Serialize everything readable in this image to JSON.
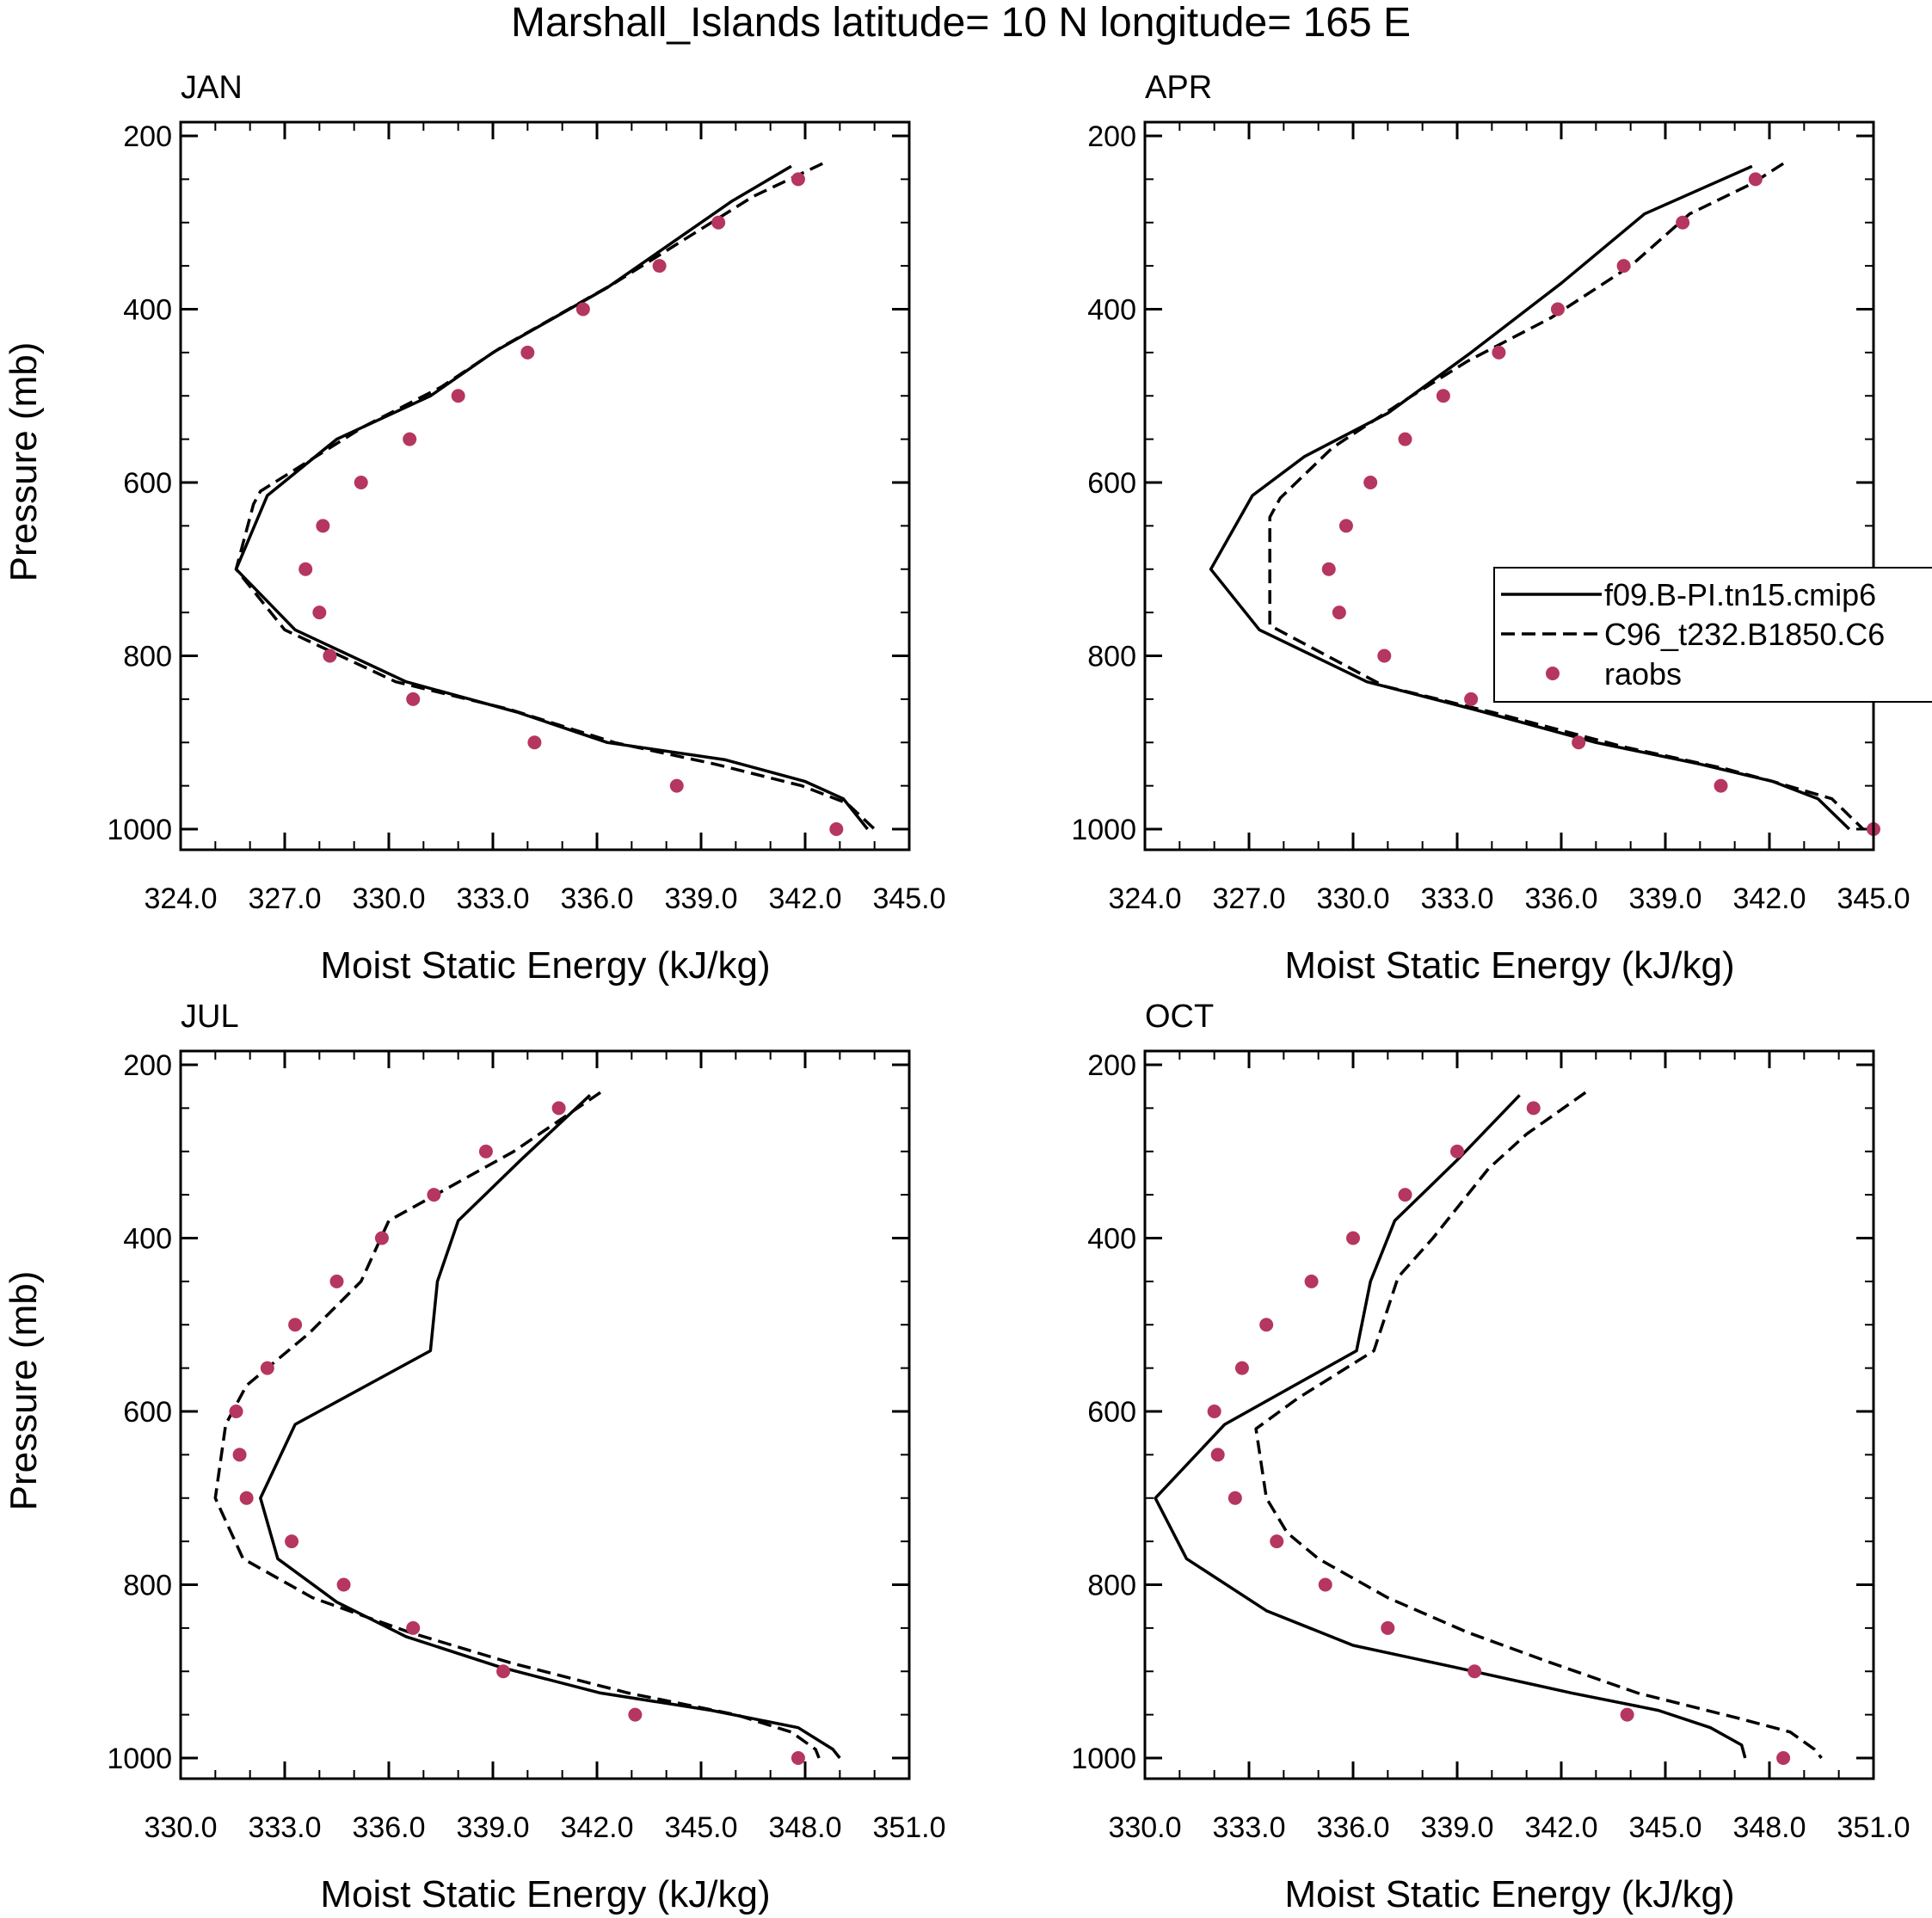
{
  "figure_title": "Marshall_Islands  latitude= 10 N longitude= 165 E",
  "colors": {
    "raobs": "#b5365f",
    "model": "#000000",
    "background": "#ffffff"
  },
  "legend": {
    "entries": [
      {
        "label": "f09.B-PI.tn15.cmip6",
        "style": "solid"
      },
      {
        "label": "C96_t232.B1850.C6",
        "style": "dashed"
      },
      {
        "label": "raobs",
        "style": "marker"
      }
    ]
  },
  "chart_data": [
    {
      "type": "line",
      "title": "JAN",
      "xlabel": "Moist Static Energy (kJ/kg)",
      "ylabel": "Pressure (mb)",
      "xlim": [
        324,
        345
      ],
      "ylim": [
        1000,
        200
      ],
      "xticks": [
        "324.0",
        "327.0",
        "330.0",
        "333.0",
        "336.0",
        "339.0",
        "342.0",
        "345.0"
      ],
      "yticks": [
        "200",
        "400",
        "600",
        "800",
        "1000"
      ],
      "series": [
        {
          "name": "f09.B-PI.tn15.cmip6",
          "style": "solid",
          "points": [
            [
              341.6,
              235
            ],
            [
              339.9,
              275
            ],
            [
              336.3,
              375
            ],
            [
              333.0,
              450
            ],
            [
              331.2,
              500
            ],
            [
              328.5,
              550
            ],
            [
              326.5,
              615
            ],
            [
              325.6,
              700
            ],
            [
              327.3,
              770
            ],
            [
              330.5,
              830
            ],
            [
              333.7,
              865
            ],
            [
              336.3,
              900
            ],
            [
              339.7,
              920
            ],
            [
              342.0,
              945
            ],
            [
              343.1,
              965
            ],
            [
              343.8,
              1000
            ]
          ]
        },
        {
          "name": "C96_t232.B1850.C6",
          "style": "dashed",
          "points": [
            [
              342.5,
              232
            ],
            [
              340.5,
              270
            ],
            [
              336.5,
              370
            ],
            [
              333.2,
              445
            ],
            [
              331.5,
              490
            ],
            [
              329.3,
              535
            ],
            [
              326.3,
              610
            ],
            [
              326.1,
              625
            ],
            [
              325.6,
              700
            ],
            [
              327.0,
              770
            ],
            [
              330.2,
              830
            ],
            [
              333.5,
              862
            ],
            [
              336.5,
              900
            ],
            [
              339.4,
              925
            ],
            [
              341.9,
              950
            ],
            [
              343.2,
              970
            ],
            [
              344.0,
              1000
            ]
          ]
        },
        {
          "name": "raobs",
          "style": "marker",
          "points": [
            [
              341.8,
              250
            ],
            [
              339.5,
              300
            ],
            [
              337.8,
              350
            ],
            [
              335.6,
              400
            ],
            [
              334.0,
              450
            ],
            [
              332.0,
              500
            ],
            [
              330.6,
              550
            ],
            [
              329.2,
              600
            ],
            [
              328.1,
              650
            ],
            [
              327.6,
              700
            ],
            [
              328.0,
              750
            ],
            [
              328.3,
              800
            ],
            [
              330.7,
              850
            ],
            [
              334.2,
              900
            ],
            [
              338.3,
              950
            ],
            [
              342.9,
              1000
            ]
          ]
        }
      ]
    },
    {
      "type": "line",
      "title": "APR",
      "xlabel": "Moist Static Energy (kJ/kg)",
      "ylabel": "",
      "xlim": [
        324,
        345
      ],
      "ylim": [
        1000,
        200
      ],
      "xticks": [
        "324.0",
        "327.0",
        "330.0",
        "333.0",
        "336.0",
        "339.0",
        "342.0",
        "345.0"
      ],
      "yticks": [
        "200",
        "400",
        "600",
        "800",
        "1000"
      ],
      "series": [
        {
          "name": "f09.B-PI.tn15.cmip6",
          "style": "solid",
          "points": [
            [
              341.5,
              235
            ],
            [
              338.4,
              290
            ],
            [
              336.0,
              370
            ],
            [
              333.4,
              450
            ],
            [
              331.0,
              520
            ],
            [
              328.6,
              570
            ],
            [
              327.1,
              615
            ],
            [
              325.9,
              700
            ],
            [
              327.3,
              770
            ],
            [
              330.4,
              830
            ],
            [
              333.5,
              862
            ],
            [
              337.0,
              900
            ],
            [
              340.0,
              925
            ],
            [
              342.1,
              945
            ],
            [
              343.4,
              965
            ],
            [
              344.3,
              1000
            ]
          ]
        },
        {
          "name": "C96_t232.B1850.C6",
          "style": "dashed",
          "points": [
            [
              342.4,
              232
            ],
            [
              341.5,
              255
            ],
            [
              339.7,
              290
            ],
            [
              338.0,
              350
            ],
            [
              335.7,
              410
            ],
            [
              333.3,
              460
            ],
            [
              331.3,
              510
            ],
            [
              329.4,
              560
            ],
            [
              327.9,
              618
            ],
            [
              327.6,
              640
            ],
            [
              327.6,
              700
            ],
            [
              327.6,
              765
            ],
            [
              330.9,
              835
            ],
            [
              334.0,
              865
            ],
            [
              337.8,
              905
            ],
            [
              340.7,
              930
            ],
            [
              342.1,
              945
            ],
            [
              343.8,
              965
            ],
            [
              344.7,
              1000
            ]
          ]
        },
        {
          "name": "raobs",
          "style": "marker",
          "points": [
            [
              341.6,
              250
            ],
            [
              339.5,
              300
            ],
            [
              337.8,
              350
            ],
            [
              335.9,
              400
            ],
            [
              334.2,
              450
            ],
            [
              332.6,
              500
            ],
            [
              331.5,
              550
            ],
            [
              330.5,
              600
            ],
            [
              329.8,
              650
            ],
            [
              329.3,
              700
            ],
            [
              329.6,
              750
            ],
            [
              330.9,
              800
            ],
            [
              333.4,
              850
            ],
            [
              336.5,
              900
            ],
            [
              340.6,
              950
            ],
            [
              345.0,
              1000
            ]
          ]
        }
      ]
    },
    {
      "type": "line",
      "title": "JUL",
      "xlabel": "Moist Static Energy (kJ/kg)",
      "ylabel": "Pressure (mb)",
      "xlim": [
        330,
        351
      ],
      "ylim": [
        1000,
        200
      ],
      "xticks": [
        "330.0",
        "333.0",
        "336.0",
        "339.0",
        "342.0",
        "345.0",
        "348.0",
        "351.0"
      ],
      "yticks": [
        "200",
        "400",
        "600",
        "800",
        "1000"
      ],
      "series": [
        {
          "name": "f09.B-PI.tn15.cmip6",
          "style": "solid",
          "points": [
            [
              341.8,
              235
            ],
            [
              339.8,
              310
            ],
            [
              338.0,
              380
            ],
            [
              337.4,
              450
            ],
            [
              337.2,
              530
            ],
            [
              333.3,
              615
            ],
            [
              332.3,
              700
            ],
            [
              332.8,
              770
            ],
            [
              334.5,
              820
            ],
            [
              336.5,
              860
            ],
            [
              339.2,
              895
            ],
            [
              342.1,
              925
            ],
            [
              345.3,
              945
            ],
            [
              347.8,
              965
            ],
            [
              348.8,
              990
            ],
            [
              349.0,
              1000
            ]
          ]
        },
        {
          "name": "C96_t232.B1850.C6",
          "style": "dashed",
          "points": [
            [
              342.1,
              232
            ],
            [
              339.6,
              300
            ],
            [
              336.0,
              380
            ],
            [
              335.2,
              450
            ],
            [
              333.7,
              510
            ],
            [
              331.9,
              570
            ],
            [
              331.3,
              615
            ],
            [
              331.0,
              700
            ],
            [
              331.8,
              770
            ],
            [
              333.8,
              815
            ],
            [
              336.6,
              855
            ],
            [
              339.5,
              890
            ],
            [
              342.9,
              925
            ],
            [
              346.0,
              950
            ],
            [
              347.6,
              970
            ],
            [
              348.3,
              990
            ],
            [
              348.4,
              1000
            ]
          ]
        },
        {
          "name": "raobs",
          "style": "marker",
          "points": [
            [
              340.9,
              250
            ],
            [
              338.8,
              300
            ],
            [
              337.3,
              350
            ],
            [
              335.8,
              400
            ],
            [
              334.5,
              450
            ],
            [
              333.3,
              500
            ],
            [
              332.5,
              550
            ],
            [
              331.6,
              600
            ],
            [
              331.7,
              650
            ],
            [
              331.9,
              700
            ],
            [
              333.2,
              750
            ],
            [
              334.7,
              800
            ],
            [
              336.7,
              850
            ],
            [
              339.3,
              900
            ],
            [
              343.1,
              950
            ],
            [
              347.8,
              1000
            ]
          ]
        }
      ]
    },
    {
      "type": "line",
      "title": "OCT",
      "xlabel": "Moist Static Energy (kJ/kg)",
      "ylabel": "",
      "xlim": [
        330,
        351
      ],
      "ylim": [
        1000,
        200
      ],
      "xticks": [
        "330.0",
        "333.0",
        "336.0",
        "339.0",
        "342.0",
        "345.0",
        "348.0",
        "351.0"
      ],
      "yticks": [
        "200",
        "400",
        "600",
        "800",
        "1000"
      ],
      "series": [
        {
          "name": "f09.B-PI.tn15.cmip6",
          "style": "solid",
          "points": [
            [
              340.8,
              235
            ],
            [
              339.0,
              310
            ],
            [
              337.2,
              380
            ],
            [
              336.5,
              450
            ],
            [
              336.1,
              530
            ],
            [
              332.3,
              615
            ],
            [
              330.3,
              700
            ],
            [
              331.2,
              770
            ],
            [
              333.5,
              830
            ],
            [
              336.0,
              870
            ],
            [
              338.9,
              895
            ],
            [
              342.3,
              925
            ],
            [
              344.8,
              945
            ],
            [
              346.3,
              965
            ],
            [
              347.2,
              985
            ],
            [
              347.3,
              1000
            ]
          ]
        },
        {
          "name": "C96_t232.B1850.C6",
          "style": "dashed",
          "points": [
            [
              342.7,
              232
            ],
            [
              341.0,
              280
            ],
            [
              339.9,
              320
            ],
            [
              338.3,
              400
            ],
            [
              337.3,
              445
            ],
            [
              336.6,
              530
            ],
            [
              334.4,
              585
            ],
            [
              333.2,
              620
            ],
            [
              333.5,
              700
            ],
            [
              334.1,
              740
            ],
            [
              335.0,
              770
            ],
            [
              337.0,
              815
            ],
            [
              339.3,
              855
            ],
            [
              341.7,
              890
            ],
            [
              344.2,
              925
            ],
            [
              347.2,
              955
            ],
            [
              348.6,
              970
            ],
            [
              349.3,
              990
            ],
            [
              349.5,
              1000
            ]
          ]
        },
        {
          "name": "raobs",
          "style": "marker",
          "points": [
            [
              341.2,
              250
            ],
            [
              339.0,
              300
            ],
            [
              337.5,
              350
            ],
            [
              336.0,
              400
            ],
            [
              334.8,
              450
            ],
            [
              333.5,
              500
            ],
            [
              332.8,
              550
            ],
            [
              332.0,
              600
            ],
            [
              332.1,
              650
            ],
            [
              332.6,
              700
            ],
            [
              333.8,
              750
            ],
            [
              335.2,
              800
            ],
            [
              337.0,
              850
            ],
            [
              339.5,
              900
            ],
            [
              343.9,
              950
            ],
            [
              348.4,
              1000
            ]
          ]
        }
      ]
    }
  ]
}
